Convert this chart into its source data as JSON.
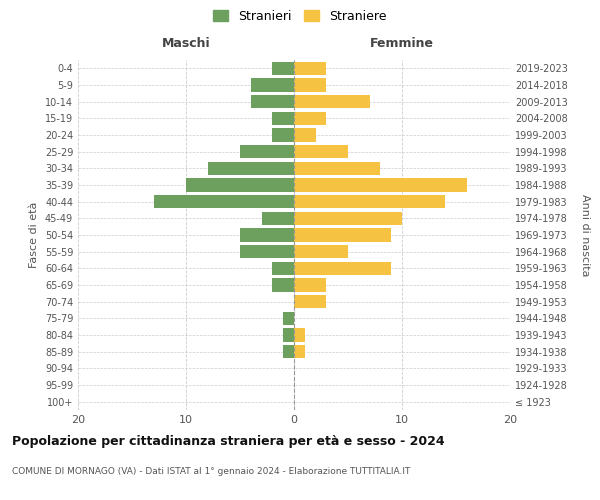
{
  "age_groups": [
    "100+",
    "95-99",
    "90-94",
    "85-89",
    "80-84",
    "75-79",
    "70-74",
    "65-69",
    "60-64",
    "55-59",
    "50-54",
    "45-49",
    "40-44",
    "35-39",
    "30-34",
    "25-29",
    "20-24",
    "15-19",
    "10-14",
    "5-9",
    "0-4"
  ],
  "birth_years": [
    "≤ 1923",
    "1924-1928",
    "1929-1933",
    "1934-1938",
    "1939-1943",
    "1944-1948",
    "1949-1953",
    "1954-1958",
    "1959-1963",
    "1964-1968",
    "1969-1973",
    "1974-1978",
    "1979-1983",
    "1984-1988",
    "1989-1993",
    "1994-1998",
    "1999-2003",
    "2004-2008",
    "2009-2013",
    "2014-2018",
    "2019-2023"
  ],
  "males": [
    0,
    0,
    0,
    1,
    1,
    1,
    0,
    2,
    2,
    5,
    5,
    3,
    13,
    10,
    8,
    5,
    2,
    2,
    4,
    4,
    2
  ],
  "females": [
    0,
    0,
    0,
    1,
    1,
    0,
    3,
    3,
    9,
    5,
    9,
    10,
    14,
    16,
    8,
    5,
    2,
    3,
    7,
    3,
    3
  ],
  "male_color": "#6d9f5e",
  "female_color": "#f5c242",
  "background_color": "#ffffff",
  "grid_color": "#cccccc",
  "title": "Popolazione per cittadinanza straniera per età e sesso - 2024",
  "subtitle": "COMUNE DI MORNAGO (VA) - Dati ISTAT al 1° gennaio 2024 - Elaborazione TUTTITALIA.IT",
  "xlabel_left": "Maschi",
  "xlabel_right": "Femmine",
  "ylabel_left": "Fasce di età",
  "ylabel_right": "Anni di nascita",
  "legend_male": "Stranieri",
  "legend_female": "Straniere",
  "xlim": 20,
  "bar_height": 0.8
}
